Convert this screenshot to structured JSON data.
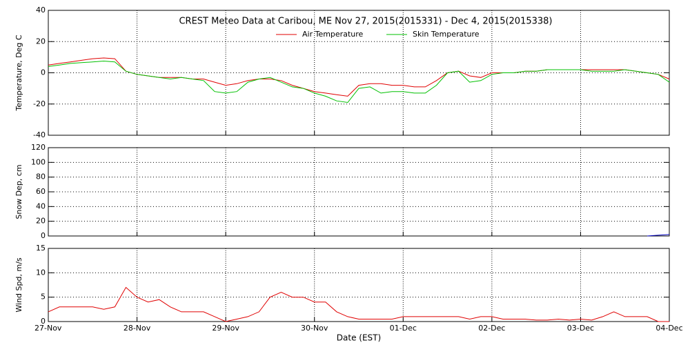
{
  "chart_data": [
    {
      "type": "line",
      "title": "CREST Meteo Data at Caribou, ME   Nov 27, 2015(2015331) - Dec  4, 2015(2015338)",
      "ylabel": "Temperature, Deg C",
      "ylim": [
        -40,
        40
      ],
      "yticks": [
        -40,
        -20,
        0,
        20,
        40
      ],
      "grid": true,
      "legend": "top",
      "x": [
        0,
        0.125,
        0.25,
        0.375,
        0.5,
        0.625,
        0.75,
        0.875,
        1,
        1.125,
        1.25,
        1.375,
        1.5,
        1.625,
        1.75,
        1.875,
        2,
        2.125,
        2.25,
        2.375,
        2.5,
        2.625,
        2.75,
        2.875,
        3,
        3.125,
        3.25,
        3.375,
        3.5,
        3.625,
        3.75,
        3.875,
        4,
        4.125,
        4.25,
        4.375,
        4.5,
        4.625,
        4.75,
        4.875,
        5,
        5.125,
        5.25,
        5.375,
        5.5,
        5.625,
        5.75,
        5.875,
        6,
        6.125,
        6.25,
        6.375,
        6.5,
        6.625,
        6.75,
        6.875,
        7
      ],
      "series": [
        {
          "name": "Air Temperature",
          "color": "#e00000",
          "values": [
            5,
            6,
            7,
            8,
            9,
            9.5,
            9,
            1,
            -1,
            -2,
            -3,
            -3,
            -3,
            -4,
            -4,
            -6,
            -8,
            -7,
            -5,
            -4,
            -4,
            -5,
            -8,
            -10,
            -12,
            -13,
            -14,
            -15,
            -8,
            -7,
            -7,
            -8,
            -8,
            -9,
            -9,
            -5,
            0,
            1,
            -2,
            -3,
            0,
            0,
            0,
            1,
            1,
            2,
            2,
            2,
            2,
            2,
            2,
            2,
            2,
            1,
            0,
            -1,
            -4
          ]
        },
        {
          "name": "Skin Temperature",
          "color": "#00c000",
          "values": [
            4,
            5,
            6,
            6.5,
            7,
            7.5,
            7,
            1,
            -1,
            -2,
            -3,
            -4,
            -3,
            -4,
            -5,
            -12,
            -13,
            -12,
            -6,
            -4,
            -3,
            -6,
            -9,
            -10,
            -13,
            -15,
            -18,
            -19,
            -10,
            -9,
            -13,
            -12,
            -12,
            -13,
            -13,
            -8,
            0,
            1,
            -6,
            -5,
            -1,
            0,
            0,
            1,
            1,
            2,
            2,
            2,
            2,
            1,
            1,
            1,
            2,
            1,
            0,
            -1,
            -6
          ]
        }
      ]
    },
    {
      "type": "line",
      "ylabel": "Snow Dep, cm",
      "ylim": [
        0,
        120
      ],
      "yticks": [
        0,
        20,
        40,
        60,
        80,
        100,
        120
      ],
      "grid": true,
      "x": [
        0,
        0.125,
        0.25,
        0.375,
        0.5,
        0.625,
        0.75,
        0.875,
        1,
        1.125,
        1.25,
        1.375,
        1.5,
        1.625,
        1.75,
        1.875,
        2,
        2.125,
        2.25,
        2.375,
        2.5,
        2.625,
        2.75,
        2.875,
        3,
        3.125,
        3.25,
        3.375,
        3.5,
        3.625,
        3.75,
        3.875,
        4,
        4.125,
        4.25,
        4.375,
        4.5,
        4.625,
        4.75,
        4.875,
        5,
        5.125,
        5.25,
        5.375,
        5.5,
        5.625,
        5.75,
        5.875,
        6,
        6.125,
        6.25,
        6.375,
        6.5,
        6.625,
        6.75,
        6.875,
        7
      ],
      "series": [
        {
          "color": "#0000c0",
          "values": [
            null,
            null,
            null,
            null,
            null,
            null,
            null,
            null,
            null,
            null,
            null,
            null,
            null,
            null,
            null,
            null,
            null,
            null,
            null,
            null,
            null,
            null,
            null,
            null,
            null,
            null,
            null,
            null,
            null,
            null,
            null,
            null,
            null,
            null,
            null,
            null,
            null,
            null,
            null,
            null,
            null,
            null,
            null,
            null,
            null,
            null,
            null,
            null,
            null,
            null,
            null,
            null,
            null,
            null,
            0,
            1,
            2
          ]
        }
      ]
    },
    {
      "type": "line",
      "ylabel": "Wind Spd, m/s",
      "xlabel": "Date (EST)",
      "ylim": [
        0,
        15
      ],
      "yticks": [
        0,
        5,
        10,
        15
      ],
      "grid": true,
      "xlim": [
        0,
        7
      ],
      "xticks": [
        {
          "value": 0,
          "label": "27-Nov"
        },
        {
          "value": 1,
          "label": "28-Nov"
        },
        {
          "value": 2,
          "label": "29-Nov"
        },
        {
          "value": 3,
          "label": "30-Nov"
        },
        {
          "value": 4,
          "label": "01-Dec"
        },
        {
          "value": 5,
          "label": "02-Dec"
        },
        {
          "value": 6,
          "label": "03-Dec"
        },
        {
          "value": 7,
          "label": "04-Dec"
        }
      ],
      "x": [
        0,
        0.125,
        0.25,
        0.375,
        0.5,
        0.625,
        0.75,
        0.875,
        1,
        1.125,
        1.25,
        1.375,
        1.5,
        1.625,
        1.75,
        1.875,
        2,
        2.125,
        2.25,
        2.375,
        2.5,
        2.625,
        2.75,
        2.875,
        3,
        3.125,
        3.25,
        3.375,
        3.5,
        3.625,
        3.75,
        3.875,
        4,
        4.125,
        4.25,
        4.375,
        4.5,
        4.625,
        4.75,
        4.875,
        5,
        5.125,
        5.25,
        5.375,
        5.5,
        5.625,
        5.75,
        5.875,
        6,
        6.125,
        6.25,
        6.375,
        6.5,
        6.625,
        6.75,
        6.875,
        7
      ],
      "series": [
        {
          "color": "#e00000",
          "values": [
            2,
            3,
            3,
            3,
            3,
            2.5,
            3,
            7,
            5,
            4,
            4.5,
            3,
            2,
            2,
            2,
            1,
            0,
            0.5,
            1,
            2,
            5,
            6,
            5,
            5,
            4,
            4,
            2,
            1,
            0.5,
            0.5,
            0.5,
            0.5,
            1,
            1,
            1,
            1,
            1,
            1,
            0.5,
            1,
            1,
            0.5,
            0.5,
            0.5,
            0.3,
            0.3,
            0.5,
            0.3,
            0.5,
            0.3,
            1,
            2,
            1,
            1,
            1,
            0,
            0
          ]
        }
      ]
    }
  ]
}
